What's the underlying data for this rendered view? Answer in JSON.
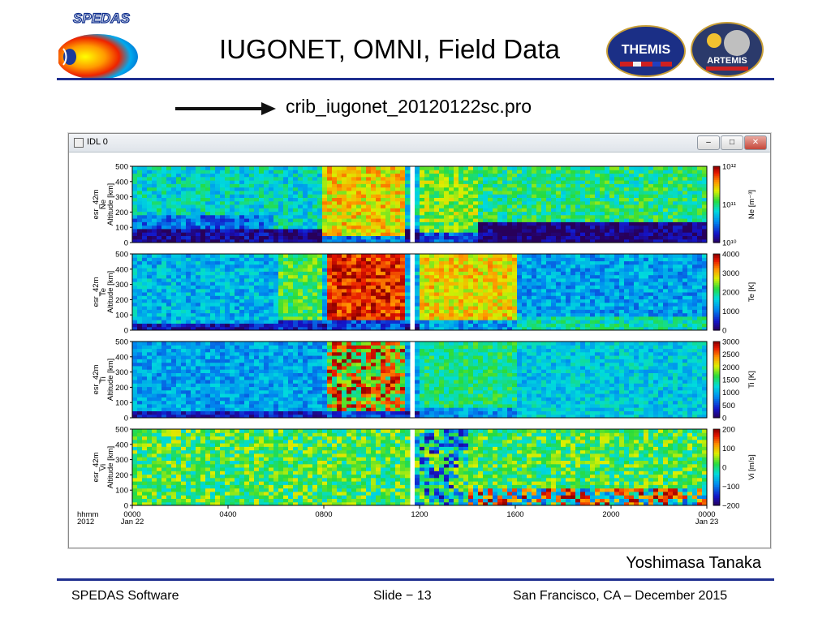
{
  "slide": {
    "title": "IUGONET, OMNI, Field Data",
    "arrow_label": "crib_iugonet_20120122sc.pro",
    "author": "Yoshimasa Tanaka",
    "logos": {
      "spedas": "SPEDAS",
      "themis": "THEMIS",
      "artemis": "ARTEMIS"
    },
    "colors": {
      "accent_line": "#1f2f8f"
    }
  },
  "footer": {
    "left": "SPEDAS Software",
    "center": "Slide − 13",
    "right": "San Francisco, CA – December 2015"
  },
  "window": {
    "title": "IDL 0",
    "buttons": {
      "minimize": "–",
      "maximize": "□",
      "close": "✕"
    }
  },
  "time_axis": {
    "name_label": "hhmm",
    "year_label": "2012",
    "ticks": [
      {
        "label": "0000",
        "sub": "Jan 22"
      },
      {
        "label": "0400",
        "sub": ""
      },
      {
        "label": "0800",
        "sub": ""
      },
      {
        "label": "1200",
        "sub": ""
      },
      {
        "label": "1600",
        "sub": ""
      },
      {
        "label": "2000",
        "sub": ""
      },
      {
        "label": "0000",
        "sub": "Jan 23"
      }
    ]
  },
  "chart_data": [
    {
      "type": "heatmap",
      "ylabel_station": "esr_42m",
      "ylabel_quantity": "Ne",
      "ylabel_axis": "Altitude [km]",
      "yticks": [
        "0",
        "100",
        "200",
        "300",
        "400",
        "500"
      ],
      "ylim": [
        0,
        500
      ],
      "colorbar": {
        "label": "Ne [m⁻³]",
        "ticks": [
          "10¹⁰",
          "10¹¹",
          "10¹²"
        ],
        "scale": "log",
        "range": [
          10000000000.0,
          1000000000000.0
        ]
      },
      "xlim_hours": [
        0,
        24
      ]
    },
    {
      "type": "heatmap",
      "ylabel_station": "esr_42m",
      "ylabel_quantity": "Te",
      "ylabel_axis": "Altitude [km]",
      "yticks": [
        "0",
        "100",
        "200",
        "300",
        "400",
        "500"
      ],
      "ylim": [
        0,
        500
      ],
      "colorbar": {
        "label": "Te [K]",
        "ticks": [
          "0",
          "1000",
          "2000",
          "3000",
          "4000"
        ],
        "scale": "linear",
        "range": [
          0,
          4000
        ]
      },
      "xlim_hours": [
        0,
        24
      ]
    },
    {
      "type": "heatmap",
      "ylabel_station": "esr_42m",
      "ylabel_quantity": "Ti",
      "ylabel_axis": "Altitude [km]",
      "yticks": [
        "0",
        "100",
        "200",
        "300",
        "400",
        "500"
      ],
      "ylim": [
        0,
        500
      ],
      "colorbar": {
        "label": "Ti [K]",
        "ticks": [
          "0",
          "500",
          "1000",
          "1500",
          "2000",
          "2500",
          "3000"
        ],
        "scale": "linear",
        "range": [
          0,
          3000
        ]
      },
      "xlim_hours": [
        0,
        24
      ]
    },
    {
      "type": "heatmap",
      "ylabel_station": "esr_42m",
      "ylabel_quantity": "Vi",
      "ylabel_axis": "Altitude [km]",
      "yticks": [
        "0",
        "100",
        "200",
        "300",
        "400",
        "500"
      ],
      "ylim": [
        0,
        500
      ],
      "colorbar": {
        "label": "Vi [m/s]",
        "ticks": [
          "−200",
          "−100",
          "0",
          "100",
          "200"
        ],
        "scale": "linear",
        "range": [
          -200,
          200
        ]
      },
      "xlim_hours": [
        0,
        24
      ]
    }
  ]
}
